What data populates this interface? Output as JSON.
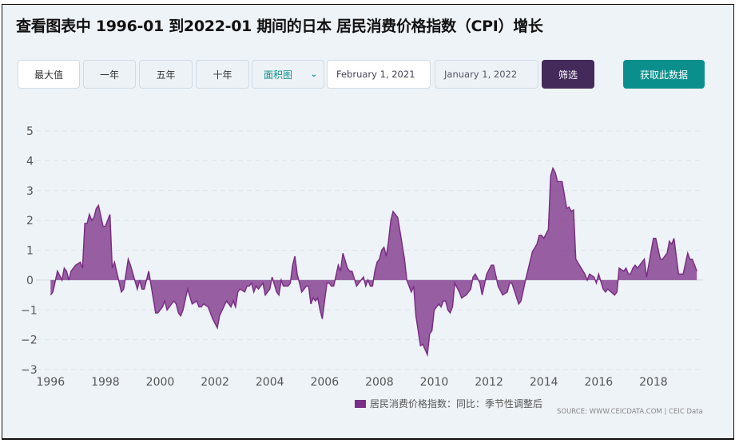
{
  "title": "查看图表中 1996-01 到2022-01 期间的日本 居民消费价格指数（CPI）增长",
  "toolbar": {
    "ranges": [
      "最大值",
      "一年",
      "五年",
      "十年"
    ],
    "chart_type": "面积图",
    "start_date": "February 1, 2021",
    "end_date": "January 1, 2022",
    "filter_label": "筛选",
    "fetch_label": "获取此数据"
  },
  "colors": {
    "series": "#7a2e85",
    "filter_button": "#442a5a",
    "fetch_button": "#0b8f8c"
  },
  "source": "SOURCE: WWW.CEICDATA.COM | CEIC Data",
  "chart_data": {
    "type": "area",
    "title": "",
    "xlabel": "",
    "ylabel": "",
    "ylim": [
      -3,
      5
    ],
    "yticks": [
      "5",
      "4",
      "3",
      "2",
      "1",
      "0",
      "−1",
      "−2",
      "−3"
    ],
    "xticks": [
      "1996",
      "1998",
      "2000",
      "2002",
      "2004",
      "2006",
      "2008",
      "2010",
      "2012",
      "2014",
      "2016",
      "2018"
    ],
    "grid": true,
    "legend_position": "bottom",
    "series": [
      {
        "name": "居民消费价格指数：同比：季节性调整后",
        "points": [
          [
            "1996-01",
            -0.5
          ],
          [
            "1996-02",
            -0.4
          ],
          [
            "1996-04",
            0.3
          ],
          [
            "1996-06",
            0
          ],
          [
            "1996-07",
            0.4
          ],
          [
            "1996-08",
            0.3
          ],
          [
            "1996-09",
            0
          ],
          [
            "1996-10",
            0.3
          ],
          [
            "1996-12",
            0.5
          ],
          [
            "1997-02",
            0.6
          ],
          [
            "1997-03",
            0.4
          ],
          [
            "1997-04",
            1.9
          ],
          [
            "1997-05",
            1.9
          ],
          [
            "1997-06",
            2.2
          ],
          [
            "1997-07",
            2.0
          ],
          [
            "1997-08",
            2.1
          ],
          [
            "1997-09",
            2.4
          ],
          [
            "1997-10",
            2.5
          ],
          [
            "1997-12",
            1.8
          ],
          [
            "1998-01",
            1.8
          ],
          [
            "1998-03",
            2.2
          ],
          [
            "1998-04",
            0.4
          ],
          [
            "1998-05",
            0.6
          ],
          [
            "1998-08",
            -0.4
          ],
          [
            "1998-09",
            -0.3
          ],
          [
            "1998-11",
            0.7
          ],
          [
            "1998-12",
            0.5
          ],
          [
            "1999-03",
            -0.3
          ],
          [
            "1999-04",
            0
          ],
          [
            "1999-05",
            -0.3
          ],
          [
            "1999-06",
            -0.3
          ],
          [
            "1999-08",
            0.3
          ],
          [
            "1999-11",
            -1.1
          ],
          [
            "1999-12",
            -1.1
          ],
          [
            "2000-02",
            -0.9
          ],
          [
            "2000-03",
            -0.7
          ],
          [
            "2000-04",
            -1.0
          ],
          [
            "2000-07",
            -0.7
          ],
          [
            "2000-08",
            -0.8
          ],
          [
            "2000-09",
            -1.1
          ],
          [
            "2000-10",
            -1.2
          ],
          [
            "2000-11",
            -1.0
          ],
          [
            "2001-01",
            -0.3
          ],
          [
            "2001-03",
            -0.8
          ],
          [
            "2001-05",
            -0.7
          ],
          [
            "2001-06",
            -0.9
          ],
          [
            "2001-07",
            -0.9
          ],
          [
            "2001-08",
            -0.8
          ],
          [
            "2001-10",
            -0.9
          ],
          [
            "2001-12",
            -1.3
          ],
          [
            "2002-02",
            -1.6
          ],
          [
            "2002-03",
            -1.2
          ],
          [
            "2002-06",
            -0.7
          ],
          [
            "2002-08",
            -0.9
          ],
          [
            "2002-09",
            -0.7
          ],
          [
            "2002-10",
            -0.9
          ],
          [
            "2002-11",
            -0.4
          ],
          [
            "2002-12",
            -0.3
          ],
          [
            "2003-02",
            -0.4
          ],
          [
            "2003-03",
            -0.2
          ],
          [
            "2003-04",
            -0.2
          ],
          [
            "2003-05",
            -0.1
          ],
          [
            "2003-06",
            -0.4
          ],
          [
            "2003-07",
            -0.2
          ],
          [
            "2003-08",
            -0.3
          ],
          [
            "2003-10",
            -0.1
          ],
          [
            "2003-11",
            -0.5
          ],
          [
            "2004-01",
            -0.3
          ],
          [
            "2004-02",
            0.1
          ],
          [
            "2004-04",
            -0.4
          ],
          [
            "2004-05",
            -0.5
          ],
          [
            "2004-06",
            0
          ],
          [
            "2004-07",
            -0.2
          ],
          [
            "2004-09",
            -0.2
          ],
          [
            "2004-10",
            -0.1
          ],
          [
            "2004-11",
            0.5
          ],
          [
            "2004-12",
            0.8
          ],
          [
            "2005-01",
            0.2
          ],
          [
            "2005-03",
            -0.4
          ],
          [
            "2005-05",
            -0.2
          ],
          [
            "2005-06",
            -0.2
          ],
          [
            "2005-07",
            -0.8
          ],
          [
            "2005-08",
            -0.6
          ],
          [
            "2005-09",
            -0.7
          ],
          [
            "2005-10",
            -0.6
          ],
          [
            "2005-11",
            -1.0
          ],
          [
            "2005-12",
            -1.3
          ],
          [
            "2006-02",
            -0.1
          ],
          [
            "2006-03",
            -0.1
          ],
          [
            "2006-04",
            -0.2
          ],
          [
            "2006-05",
            -0.2
          ],
          [
            "2006-07",
            0.5
          ],
          [
            "2006-08",
            0.3
          ],
          [
            "2006-09",
            0.9
          ],
          [
            "2006-11",
            0.4
          ],
          [
            "2006-12",
            0.3
          ],
          [
            "2007-01",
            0.3
          ],
          [
            "2007-03",
            -0.2
          ],
          [
            "2007-06",
            0.1
          ],
          [
            "2007-07",
            -0.2
          ],
          [
            "2007-08",
            0
          ],
          [
            "2007-09",
            -0.2
          ],
          [
            "2007-10",
            -0.2
          ],
          [
            "2007-11",
            0.3
          ],
          [
            "2007-12",
            0.6
          ],
          [
            "2008-01",
            0.7
          ],
          [
            "2008-02",
            1.0
          ],
          [
            "2008-03",
            1.1
          ],
          [
            "2008-04",
            0.8
          ],
          [
            "2008-05",
            1.3
          ],
          [
            "2008-06",
            2.0
          ],
          [
            "2008-07",
            2.3
          ],
          [
            "2008-09",
            2.1
          ],
          [
            "2008-10",
            1.65
          ],
          [
            "2008-12",
            0.7
          ],
          [
            "2009-01",
            0
          ],
          [
            "2009-03",
            -0.4
          ],
          [
            "2009-04",
            -0.2
          ],
          [
            "2009-05",
            -1.2
          ],
          [
            "2009-07",
            -2.2
          ],
          [
            "2009-08",
            -2.15
          ],
          [
            "2009-10",
            -2.5
          ],
          [
            "2009-11",
            -1.8
          ],
          [
            "2009-12",
            -1.7
          ],
          [
            "2010-01",
            -1.0
          ],
          [
            "2010-03",
            -0.8
          ],
          [
            "2010-04",
            -0.9
          ],
          [
            "2010-05",
            -0.7
          ],
          [
            "2010-06",
            -0.7
          ],
          [
            "2010-07",
            -1.0
          ],
          [
            "2010-08",
            -1.1
          ],
          [
            "2010-09",
            -0.9
          ],
          [
            "2010-10",
            -0.1
          ],
          [
            "2010-12",
            -0.4
          ],
          [
            "2011-01",
            -0.6
          ],
          [
            "2011-03",
            -0.5
          ],
          [
            "2011-04",
            -0.4
          ],
          [
            "2011-05",
            -0.3
          ],
          [
            "2011-06",
            0.1
          ],
          [
            "2011-07",
            0.2
          ],
          [
            "2011-09",
            -0.1
          ],
          [
            "2011-10",
            -0.5
          ],
          [
            "2011-12",
            0.2
          ],
          [
            "2012-02",
            0.5
          ],
          [
            "2012-03",
            0.5
          ],
          [
            "2012-05",
            -0.2
          ],
          [
            "2012-07",
            -0.5
          ],
          [
            "2012-09",
            -0.4
          ],
          [
            "2012-10",
            -0.1
          ],
          [
            "2012-11",
            -0.1
          ],
          [
            "2013-02",
            -0.8
          ],
          [
            "2013-03",
            -0.7
          ],
          [
            "2013-05",
            0
          ],
          [
            "2013-08",
            0.95
          ],
          [
            "2013-10",
            1.2
          ],
          [
            "2013-11",
            1.5
          ],
          [
            "2013-12",
            1.5
          ],
          [
            "2014-01",
            1.4
          ],
          [
            "2014-03",
            1.7
          ],
          [
            "2014-04",
            3.5
          ],
          [
            "2014-05",
            3.75
          ],
          [
            "2014-06",
            3.6
          ],
          [
            "2014-07",
            3.3
          ],
          [
            "2014-09",
            3.3
          ],
          [
            "2014-11",
            2.4
          ],
          [
            "2014-12",
            2.45
          ],
          [
            "2015-01",
            2.3
          ],
          [
            "2015-02",
            2.35
          ],
          [
            "2015-03",
            0.7
          ],
          [
            "2015-05",
            0.45
          ],
          [
            "2015-07",
            0.2
          ],
          [
            "2015-08",
            0
          ],
          [
            "2015-09",
            0.2
          ],
          [
            "2015-11",
            0.1
          ],
          [
            "2015-12",
            -0.1
          ],
          [
            "2016-01",
            0.2
          ],
          [
            "2016-03",
            -0.3
          ],
          [
            "2016-04",
            -0.4
          ],
          [
            "2016-05",
            -0.3
          ],
          [
            "2016-08",
            -0.5
          ],
          [
            "2016-09",
            -0.4
          ],
          [
            "2016-10",
            0.4
          ],
          [
            "2016-12",
            0.3
          ],
          [
            "2017-01",
            0.4
          ],
          [
            "2017-02",
            0.2
          ],
          [
            "2017-03",
            0.2
          ],
          [
            "2017-04",
            0.4
          ],
          [
            "2017-05",
            0.5
          ],
          [
            "2017-06",
            0.4
          ],
          [
            "2017-09",
            0.7
          ],
          [
            "2017-10",
            0.1
          ],
          [
            "2018-01",
            1.4
          ],
          [
            "2018-02",
            1.4
          ],
          [
            "2018-04",
            0.7
          ],
          [
            "2018-05",
            0.7
          ],
          [
            "2018-07",
            0.9
          ],
          [
            "2018-08",
            1.3
          ],
          [
            "2018-09",
            1.2
          ],
          [
            "2018-10",
            1.4
          ],
          [
            "2018-12",
            0.2
          ],
          [
            "2019-02",
            0.2
          ],
          [
            "2019-04",
            0.9
          ],
          [
            "2019-05",
            0.7
          ],
          [
            "2019-06",
            0.7
          ],
          [
            "2019-08",
            0.3
          ]
        ]
      }
    ]
  }
}
